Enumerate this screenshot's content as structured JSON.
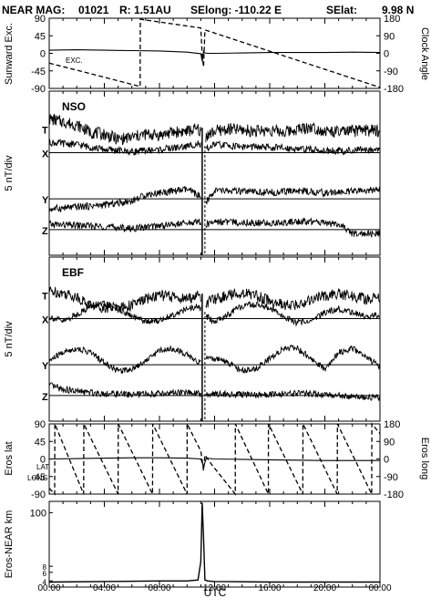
{
  "header": {
    "mission": "NEAR MAG:",
    "day": "01021",
    "range": "R: 1.51AU",
    "selong": "SElong: -110.22 E",
    "selat": "SElat:",
    "selat_value": "9.98 N"
  },
  "chart_data": [
    {
      "type": "line",
      "id": "sunward-clock",
      "ylabel": "Sunward Exc.",
      "y2label": "Clock Angle",
      "ylim": [
        -90,
        90
      ],
      "y2lim": [
        -180,
        180
      ],
      "yticks": [
        "90",
        "45",
        "0",
        "-45",
        "-90"
      ],
      "y2ticks": [
        "180",
        "90",
        "0",
        "-90",
        "-180"
      ],
      "annotations": [
        "EXC."
      ],
      "series": [
        {
          "key": "exc",
          "style": "solid",
          "axis": "left",
          "x": [
            0,
            2,
            4,
            6,
            8,
            10,
            11.0,
            11.1,
            11.2,
            11.3,
            11.5,
            12,
            14,
            16,
            18,
            20,
            22,
            24
          ],
          "y": [
            8,
            9,
            8,
            7,
            6,
            3,
            -1,
            -20,
            5,
            1,
            0,
            0,
            1,
            2,
            2,
            2,
            3,
            2
          ]
        },
        {
          "key": "clock",
          "style": "dashed",
          "axis": "right",
          "x": [
            0,
            6.6,
            6.61,
            11.0,
            11.1,
            11.2,
            11.3,
            24
          ],
          "y": [
            -50,
            -170,
            175,
            130,
            -10,
            -70,
            120,
            -175
          ]
        }
      ]
    },
    {
      "type": "line",
      "id": "nso",
      "title": "NSO",
      "ylabel": "5 nT/div",
      "component_labels": [
        "T",
        "X",
        "Y",
        "Z"
      ],
      "series": [
        {
          "key": "T",
          "offset": 3.5,
          "x": [
            0,
            1,
            2,
            3,
            4,
            5,
            6,
            7,
            8,
            9,
            10,
            10.8,
            11.3,
            12,
            13,
            14,
            15,
            16,
            17,
            18,
            19,
            20,
            21,
            22,
            23,
            24
          ],
          "y": [
            1.8,
            1.5,
            1.2,
            0.5,
            0.3,
            -0.2,
            0,
            0.3,
            0.2,
            0.5,
            0.6,
            0.8,
            0,
            0.6,
            0.8,
            0.7,
            0.6,
            0.7,
            0.5,
            0.8,
            1.0,
            0.6,
            0.5,
            0.6,
            0.7,
            0.6
          ]
        },
        {
          "key": "X",
          "offset": 2.0,
          "x": [
            0,
            2,
            4,
            6,
            8,
            10,
            10.8,
            11.3,
            12,
            14,
            16,
            18,
            20,
            22,
            24
          ],
          "y": [
            1.0,
            0.8,
            0.3,
            0.1,
            0.3,
            0.6,
            0.9,
            0.3,
            0.8,
            0.6,
            0.5,
            0.4,
            0.2,
            0.2,
            0.4
          ]
        },
        {
          "key": "Y",
          "offset": -2.5,
          "x": [
            0,
            2,
            4,
            6,
            7,
            8,
            10,
            10.8,
            11.3,
            12,
            14,
            16,
            18,
            20,
            22,
            24
          ],
          "y": [
            -1.0,
            -0.8,
            -0.6,
            -0.2,
            0.4,
            0.6,
            0.9,
            0.4,
            -0.5,
            0.8,
            0.7,
            0.6,
            0.8,
            0.6,
            0.7,
            0.9
          ]
        },
        {
          "key": "Z",
          "offset": -5.5,
          "x": [
            0,
            2,
            4,
            6,
            8,
            10,
            10.8,
            11.3,
            12,
            14,
            16,
            18,
            20,
            21,
            22,
            24
          ],
          "y": [
            0.5,
            0.4,
            0.3,
            0.1,
            0.4,
            0.6,
            0.8,
            0.4,
            0.8,
            0.7,
            0.6,
            0.8,
            0.7,
            0.5,
            -0.4,
            -0.4
          ]
        }
      ]
    },
    {
      "type": "line",
      "id": "ebf",
      "title": "EBF",
      "ylabel": "5 nT/div",
      "component_labels": [
        "T",
        "X",
        "Y",
        "Z"
      ],
      "series": [
        {
          "key": "T",
          "offset": 3.5,
          "x": [
            0,
            1,
            2,
            3,
            4,
            5,
            6,
            7,
            8,
            9,
            10,
            10.8,
            11.3,
            12,
            13,
            14,
            15,
            16,
            17,
            18,
            19,
            20,
            21,
            22,
            23,
            24
          ],
          "y": [
            1.2,
            1.0,
            0.6,
            -0.2,
            -0.4,
            -0.4,
            -0.2,
            0.4,
            0.8,
            0.6,
            0.4,
            0.8,
            0,
            0.4,
            0.8,
            1.0,
            0.8,
            0.2,
            -0.2,
            -0.2,
            0.4,
            0.7,
            0.9,
            0.7,
            0.4,
            0.5
          ]
        },
        {
          "key": "X",
          "offset": 2.0,
          "x": [
            0,
            1,
            2,
            3,
            4,
            5,
            6,
            7,
            8,
            9,
            10,
            10.8,
            11.3,
            12,
            13,
            14,
            15,
            16,
            17,
            18,
            19,
            20,
            21,
            22,
            23,
            24
          ],
          "y": [
            0.2,
            -0.3,
            0.4,
            1.2,
            1.4,
            1.0,
            0.2,
            -0.3,
            -0.2,
            0.4,
            0.9,
            1.2,
            0.3,
            -0.3,
            0.4,
            1.2,
            1.4,
            1.0,
            0.2,
            -0.4,
            -0.2,
            0.6,
            1.0,
            0.6,
            0.2,
            0.4
          ]
        },
        {
          "key": "Y",
          "offset": -2.5,
          "x": [
            0,
            1,
            2,
            3,
            4,
            5,
            6,
            7,
            8,
            9,
            10,
            10.8,
            11.3,
            12,
            13,
            14,
            15,
            16,
            17,
            18,
            19,
            20,
            21,
            22,
            23,
            24
          ],
          "y": [
            0.4,
            1.2,
            1.6,
            1.2,
            0.2,
            -0.6,
            -0.4,
            0.4,
            1.4,
            1.6,
            1.0,
            0.2,
            0.5,
            0.6,
            0.2,
            -0.6,
            -0.4,
            0.6,
            1.6,
            1.6,
            0.6,
            -0.4,
            1.2,
            1.6,
            0.8,
            -0.2
          ]
        },
        {
          "key": "Z",
          "offset": -5.5,
          "x": [
            0,
            1,
            2,
            4,
            6,
            8,
            10,
            10.8,
            11.3,
            12,
            14,
            16,
            18,
            20,
            22,
            24
          ],
          "y": [
            1.0,
            0.6,
            0.4,
            0.2,
            0.1,
            0.2,
            0.3,
            0.2,
            0,
            0.2,
            0.1,
            0.1,
            0.2,
            0.1,
            -0.1,
            -0.2
          ]
        }
      ]
    },
    {
      "type": "line",
      "id": "eros-lat-long",
      "ylabel": "Eros lat",
      "y2label": "Eros long",
      "ylim": [
        -90,
        90
      ],
      "y2lim": [
        -180,
        180
      ],
      "yticks": [
        "90",
        "45",
        "0",
        "-45",
        "-90"
      ],
      "y2ticks": [
        "180",
        "90",
        "0",
        "-90",
        "-180"
      ],
      "annotations": [
        "LAT",
        "LONG"
      ],
      "series": [
        {
          "key": "lat",
          "style": "solid",
          "axis": "left",
          "x": [
            0,
            2,
            4,
            6,
            8,
            10,
            11.0,
            11.2,
            11.4,
            12,
            14,
            16,
            18,
            20,
            22,
            24
          ],
          "y": [
            0,
            1,
            2,
            3,
            3,
            2,
            0,
            -20,
            2,
            0,
            -1,
            -2,
            -3,
            -4,
            -4,
            -4
          ]
        },
        {
          "key": "long",
          "style": "dashed",
          "axis": "right",
          "x": [
            0,
            0.4,
            0.41,
            2.5,
            2.51,
            5.0,
            5.01,
            7.5,
            7.51,
            10.0,
            10.01,
            11.0,
            11.2,
            11.3,
            11.8,
            13.5,
            13.51,
            15.9,
            15.91,
            18.4,
            18.41,
            20.9,
            20.91,
            23.4,
            23.41,
            24
          ],
          "y": [
            -150,
            -180,
            180,
            -180,
            180,
            -180,
            180,
            -180,
            180,
            -180,
            180,
            40,
            -60,
            20,
            -30,
            -180,
            180,
            -180,
            180,
            -180,
            180,
            -180,
            180,
            -180,
            180,
            130
          ]
        }
      ]
    },
    {
      "type": "line",
      "id": "eros-near-distance",
      "ylabel": "Eros-NEAR km",
      "xlabel": "UTC",
      "yscale": "log",
      "ylim": [
        3,
        170
      ],
      "yticks": [
        "100",
        "8",
        "6",
        "4"
      ],
      "xticks": [
        "00:00",
        "04:00",
        "08:00",
        "12:00",
        "16:00",
        "20:00",
        "00:00"
      ],
      "series": [
        {
          "key": "dist",
          "style": "solid",
          "x": [
            0,
            4,
            8,
            10,
            10.8,
            11.0,
            11.1,
            11.2,
            11.3,
            11.5,
            12,
            16,
            20,
            24
          ],
          "y": [
            3.8,
            3.9,
            4.0,
            4.0,
            4.2,
            10,
            160,
            30,
            4.2,
            4.0,
            3.9,
            3.8,
            3.8,
            3.8
          ]
        }
      ]
    }
  ]
}
